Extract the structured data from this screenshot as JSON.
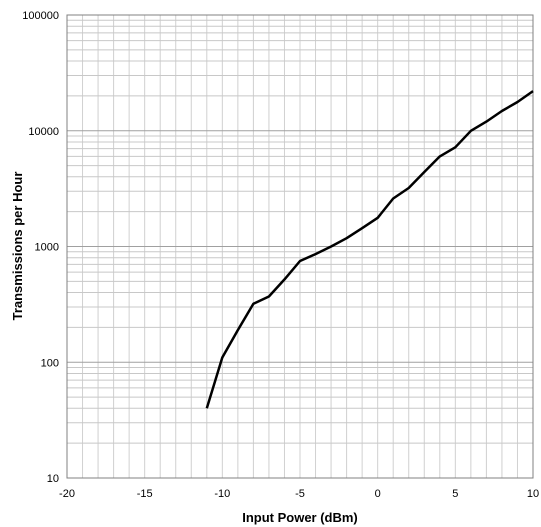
{
  "chart_data": {
    "type": "line",
    "title": "",
    "xlabel": "Input Power (dBm)",
    "ylabel": "Transmissions per Hour",
    "xlim": [
      -20,
      10
    ],
    "ylim": [
      10,
      100000
    ],
    "yscale": "log",
    "grid": true,
    "legend": "none",
    "x_ticks": [
      -20,
      -15,
      -10,
      -5,
      0,
      5,
      10
    ],
    "x_tick_labels": [
      "-20",
      "-15",
      "-10",
      "-5",
      "0",
      "5",
      "10"
    ],
    "y_ticks": [
      10,
      100,
      1000,
      10000,
      100000
    ],
    "y_tick_labels": [
      "10",
      "100",
      "1000",
      "10000",
      "100000"
    ],
    "series": [
      {
        "x": [
          -11,
          -10,
          -9,
          -8,
          -7,
          -6,
          -5,
          -4,
          -3,
          -2,
          -1,
          0,
          1,
          2,
          3,
          4,
          5,
          6,
          7,
          8,
          9,
          10
        ],
        "y": [
          40,
          110,
          190,
          320,
          370,
          520,
          750,
          860,
          1000,
          1180,
          1440,
          1770,
          2600,
          3200,
          4400,
          6000,
          7200,
          10000,
          12000,
          14800,
          17700,
          22000
        ],
        "color": "#000000"
      }
    ]
  }
}
